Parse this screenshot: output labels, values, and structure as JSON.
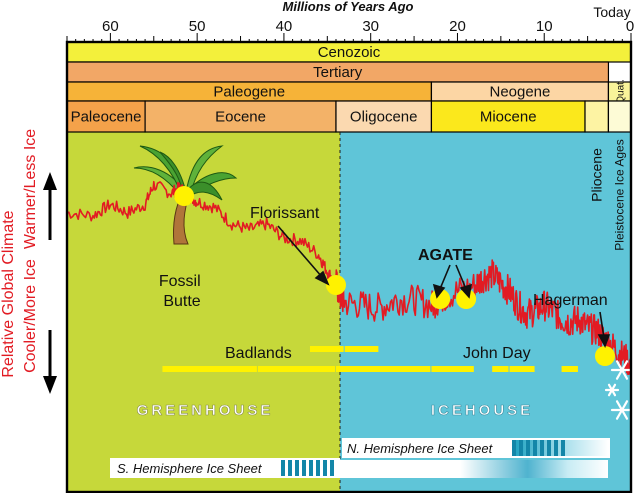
{
  "chart_data": {
    "type": "line",
    "title": "Millions of Years Ago",
    "xlabel": "Millions of Years Ago",
    "ylabel_top": "Relative Global Climate",
    "ylabel_warm": "Warmer/Less Ice",
    "ylabel_cold": "Cooler/More Ice",
    "x_ticks": [
      "60",
      "50",
      "40",
      "30",
      "20",
      "10"
    ],
    "x_tick_values": [
      60,
      50,
      40,
      30,
      20,
      10
    ],
    "today_label": "Today",
    "xlim": [
      65,
      0
    ],
    "ylim": [
      0,
      10
    ],
    "time_scale": {
      "eon_row": [
        {
          "name": "Cenozoic",
          "start": 65,
          "end": 0
        }
      ],
      "period_row": [
        {
          "name": "Tertiary",
          "start": 65,
          "end": 2.6
        }
      ],
      "subperiod_row": [
        {
          "name": "Paleogene",
          "start": 65,
          "end": 23
        },
        {
          "name": "Neogene",
          "start": 23,
          "end": 2.6
        },
        {
          "name": "Quat.",
          "start": 2.6,
          "end": 0
        }
      ],
      "epoch_row": [
        {
          "name": "Paleocene",
          "start": 65,
          "end": 56
        },
        {
          "name": "Eocene",
          "start": 56,
          "end": 34
        },
        {
          "name": "Oligocene",
          "start": 34,
          "end": 23
        },
        {
          "name": "Miocene",
          "start": 23,
          "end": 5.3
        },
        {
          "name": "Pliocene",
          "start": 5.3,
          "end": 2.6
        },
        {
          "name": "Pleistocene Ice Ages",
          "start": 2.6,
          "end": 0
        }
      ]
    },
    "climate_curve": {
      "x": [
        65,
        62,
        60,
        58,
        56,
        55,
        53,
        52,
        51,
        50,
        48,
        46,
        44,
        42,
        40,
        38,
        36,
        35,
        34,
        33.5,
        33,
        31,
        29,
        27,
        25,
        23,
        22,
        20,
        18,
        17,
        16,
        15,
        14,
        13,
        12,
        11,
        10,
        9,
        8,
        7,
        6,
        5,
        4,
        3,
        2,
        1,
        0
      ],
      "y": [
        7.4,
        7.3,
        7.7,
        7.4,
        7.7,
        8.4,
        8.1,
        8.3,
        8.0,
        7.8,
        7.6,
        7.0,
        6.8,
        7.0,
        6.5,
        6.4,
        5.9,
        5.3,
        4.9,
        4.4,
        4.2,
        4.1,
        4.0,
        4.3,
        4.3,
        4.1,
        4.3,
        4.6,
        4.8,
        5.1,
        5.2,
        4.9,
        4.6,
        4.1,
        3.8,
        3.9,
        4.1,
        3.9,
        3.6,
        3.5,
        3.6,
        3.3,
        3.2,
        2.9,
        2.6,
        2.3,
        2.0
      ]
    },
    "climate_states": [
      {
        "name": "GREENHOUSE",
        "start": 65,
        "end": 34
      },
      {
        "name": "ICEHOUSE",
        "start": 34,
        "end": 0
      }
    ],
    "sites": [
      {
        "name": "Fossil Butte",
        "age": 51.5
      },
      {
        "name": "Florissant",
        "age": 34
      },
      {
        "name": "AGATE",
        "age": 22
      },
      {
        "name": "AGATE",
        "age": 19
      },
      {
        "name": "Hagerman",
        "age": 3
      }
    ],
    "formations": [
      {
        "name": "Badlands",
        "segments": [
          [
            37,
            33
          ],
          [
            33,
            29
          ]
        ]
      },
      {
        "name": "John Day",
        "segments": [
          [
            54,
            43
          ],
          [
            43,
            34
          ],
          [
            34,
            23
          ],
          [
            23,
            18
          ],
          [
            16,
            14
          ],
          [
            14,
            11
          ],
          [
            8,
            6
          ]
        ]
      }
    ],
    "ice_sheets": [
      {
        "name": "N. Hemisphere Ice Sheet",
        "start": 14,
        "end": 0
      },
      {
        "name": "S. Hemisphere Ice Sheet",
        "start": 39,
        "end": 0
      }
    ],
    "colors": {
      "greenhouse": "#c6d83a",
      "icehouse": "#5fc5d8",
      "curve": "#e21b23",
      "axis_labels": "#e21b23",
      "cenozoic": "#f3f03b",
      "tertiary": "#f2a766",
      "paleogene": "#f6b338",
      "neogene": "#fcd6a4",
      "quat": "#f9f49a",
      "paleocene": "#f4a24a",
      "eocene": "#f3b268",
      "oligocene": "#fbd9b0",
      "miocene": "#fbe81c",
      "pliocene": "#fdf3a3",
      "pleistocene": "#fdfbd6",
      "site_marker": "#fff200",
      "formation_bar": "#fff200"
    }
  }
}
